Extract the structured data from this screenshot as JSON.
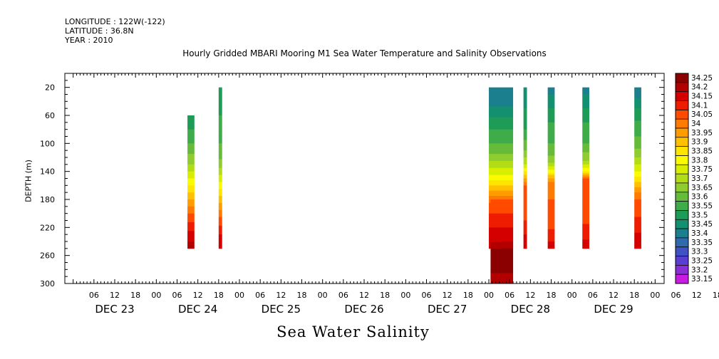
{
  "header": {
    "longitude": "LONGITUDE : 122W(-122)",
    "latitude": "LATITUDE : 36.8N",
    "year": "YEAR : 2010"
  },
  "chart_data": {
    "type": "heatmap",
    "title": "Hourly Gridded MBARI Mooring M1 Sea Water Temperature and Salinity Observations",
    "xlabel": "Sea Water Salinity",
    "ylabel": "DEPTH (m)",
    "y_axis": {
      "ticks": [
        20,
        60,
        100,
        140,
        180,
        220,
        260,
        300
      ],
      "range": [
        0,
        300
      ],
      "reversed": true
    },
    "x_axis": {
      "hour_labels": [
        "06",
        "12",
        "18",
        "00",
        "06",
        "12",
        "18",
        "00",
        "06",
        "12",
        "18",
        "00",
        "06",
        "12",
        "18",
        "00",
        "06",
        "12",
        "18",
        "00",
        "06",
        "12",
        "18",
        "00",
        "06",
        "12",
        "18",
        "00",
        "06",
        "12",
        "18",
        "00"
      ],
      "day_labels": [
        "DEC 23",
        "DEC 24",
        "DEC 25",
        "DEC 26",
        "DEC 27",
        "DEC 28",
        "DEC 29"
      ]
    },
    "colorbar": {
      "labels": [
        "34.25",
        "34.2",
        "34.15",
        "34.1",
        "34.05",
        "34",
        "33.95",
        "33.9",
        "33.85",
        "33.8",
        "33.75",
        "33.7",
        "33.65",
        "33.6",
        "33.55",
        "33.5",
        "33.45",
        "33.4",
        "33.35",
        "33.3",
        "33.25",
        "33.2",
        "33.15"
      ],
      "colors": [
        "#8b0000",
        "#b20000",
        "#d40000",
        "#ee1c00",
        "#ff4a00",
        "#ff7a00",
        "#ff9c00",
        "#ffc000",
        "#ffe400",
        "#fafa00",
        "#d8ee00",
        "#b2dd16",
        "#8ecc30",
        "#66bb3a",
        "#3fac4a",
        "#1e9c57",
        "#129070",
        "#1b7f8e",
        "#2f6aac",
        "#3f52c4",
        "#5a3ed2",
        "#8a2ed8",
        "#c81ce0"
      ]
    },
    "note_time": "hours since 2010-12-23 00:00; depth in m",
    "columns": [
      {
        "t_start": 33,
        "t_end": 35,
        "depth_top": 60,
        "depth_bottom": 250,
        "profile": [
          [
            60,
            33.45
          ],
          [
            80,
            33.5
          ],
          [
            100,
            33.55
          ],
          [
            115,
            33.6
          ],
          [
            130,
            33.65
          ],
          [
            145,
            33.72
          ],
          [
            160,
            33.8
          ],
          [
            175,
            33.88
          ],
          [
            190,
            33.95
          ],
          [
            205,
            34.02
          ],
          [
            220,
            34.08
          ],
          [
            235,
            34.14
          ],
          [
            250,
            34.17
          ]
        ]
      },
      {
        "t_start": 42,
        "t_end": 43,
        "depth_top": 20,
        "depth_bottom": 250,
        "profile": [
          [
            20,
            33.45
          ],
          [
            60,
            33.5
          ],
          [
            100,
            33.55
          ],
          [
            130,
            33.62
          ],
          [
            150,
            33.72
          ],
          [
            170,
            33.82
          ],
          [
            190,
            33.92
          ],
          [
            210,
            34.02
          ],
          [
            230,
            34.1
          ],
          [
            250,
            34.15
          ]
        ]
      },
      {
        "t_start": 120,
        "t_end": 127,
        "depth_top": 20,
        "depth_bottom": 250,
        "profile": [
          [
            20,
            33.38
          ],
          [
            40,
            33.38
          ],
          [
            55,
            33.42
          ],
          [
            70,
            33.48
          ],
          [
            90,
            33.52
          ],
          [
            110,
            33.58
          ],
          [
            125,
            33.65
          ],
          [
            140,
            33.72
          ],
          [
            155,
            33.82
          ],
          [
            170,
            33.92
          ],
          [
            185,
            34.0
          ],
          [
            200,
            34.05
          ],
          [
            220,
            34.1
          ],
          [
            240,
            34.13
          ],
          [
            250,
            34.15
          ]
        ]
      },
      {
        "t_start": 120.5,
        "t_end": 127,
        "depth_top": 180,
        "depth_bottom": 300,
        "profile": [
          [
            180,
            34.0
          ],
          [
            200,
            34.05
          ],
          [
            220,
            34.1
          ],
          [
            240,
            34.15
          ],
          [
            255,
            34.22
          ],
          [
            270,
            34.22
          ],
          [
            285,
            34.2
          ],
          [
            300,
            34.18
          ]
        ]
      },
      {
        "t_start": 130,
        "t_end": 131,
        "depth_top": 20,
        "depth_bottom": 250,
        "profile": [
          [
            20,
            33.4
          ],
          [
            50,
            33.45
          ],
          [
            80,
            33.5
          ],
          [
            110,
            33.6
          ],
          [
            130,
            33.7
          ],
          [
            145,
            33.85
          ],
          [
            160,
            34.0
          ],
          [
            200,
            34.02
          ],
          [
            230,
            34.1
          ],
          [
            250,
            34.15
          ]
        ]
      },
      {
        "t_start": 137,
        "t_end": 139,
        "depth_top": 20,
        "depth_bottom": 250,
        "profile": [
          [
            20,
            33.38
          ],
          [
            40,
            33.42
          ],
          [
            70,
            33.5
          ],
          [
            100,
            33.55
          ],
          [
            125,
            33.62
          ],
          [
            140,
            33.78
          ],
          [
            155,
            33.95
          ],
          [
            180,
            34.0
          ],
          [
            210,
            34.02
          ],
          [
            235,
            34.08
          ],
          [
            250,
            34.14
          ]
        ]
      },
      {
        "t_start": 147,
        "t_end": 149,
        "depth_top": 20,
        "depth_bottom": 250,
        "profile": [
          [
            20,
            33.38
          ],
          [
            40,
            33.42
          ],
          [
            70,
            33.5
          ],
          [
            100,
            33.55
          ],
          [
            125,
            33.65
          ],
          [
            140,
            33.8
          ],
          [
            150,
            34.0
          ],
          [
            200,
            34.02
          ],
          [
            230,
            34.08
          ],
          [
            250,
            34.14
          ]
        ]
      },
      {
        "t_start": 162,
        "t_end": 164,
        "depth_top": 20,
        "depth_bottom": 250,
        "profile": [
          [
            20,
            33.35
          ],
          [
            35,
            33.4
          ],
          [
            60,
            33.48
          ],
          [
            90,
            33.55
          ],
          [
            115,
            33.62
          ],
          [
            135,
            33.72
          ],
          [
            150,
            33.82
          ],
          [
            165,
            33.92
          ],
          [
            180,
            34.0
          ],
          [
            200,
            34.04
          ],
          [
            220,
            34.08
          ],
          [
            240,
            34.13
          ],
          [
            250,
            34.15
          ]
        ]
      }
    ]
  }
}
